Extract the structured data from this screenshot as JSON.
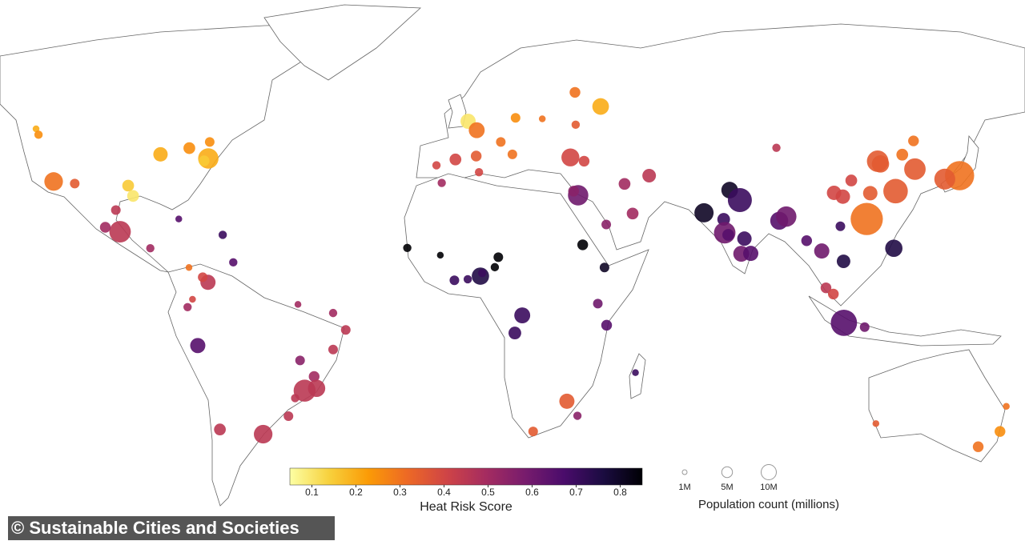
{
  "chart_data": {
    "type": "bubble-map",
    "colorbar": {
      "title": "Heat Risk Score",
      "clim": [
        0.05,
        0.85
      ],
      "ticks": [
        0.1,
        0.2,
        0.3,
        0.4,
        0.5,
        0.6,
        0.7,
        0.8
      ],
      "colormap": [
        "#fcffa4",
        "#f7d13d",
        "#fb9b06",
        "#ed6925",
        "#cf4446",
        "#a52c60",
        "#781c6d",
        "#4a0c6b",
        "#1b0c41",
        "#000004"
      ]
    },
    "size_legend": {
      "title": "Population count (millions)",
      "ticks": [
        {
          "value": 1,
          "label": "1M"
        },
        {
          "value": 5,
          "label": "5M"
        },
        {
          "value": 10,
          "label": "10M"
        }
      ]
    },
    "lon": [
      -118,
      -112,
      -123,
      -122.3,
      -87.6,
      -79.4,
      -73.6,
      -74,
      -75.2,
      -96.8,
      -95.4,
      -100.3,
      -99.1,
      -103.3,
      -90.5,
      -82.4,
      -69.9,
      -79.5,
      -66.9,
      -74.1,
      -75.6,
      -79.9,
      -78.5,
      -77,
      -48.5,
      -38.5,
      -34.9,
      -38.5,
      -47.9,
      -43.9,
      -46.6,
      -43.2,
      -49.3,
      -51.2,
      -70.7,
      -58.4,
      -0.1,
      2.35,
      -3.7,
      2.2,
      -9.1,
      12.5,
      9.2,
      13.4,
      21,
      30.5,
      37.6,
      30.3,
      29,
      32.9,
      31.2,
      29.9,
      3,
      -7.6,
      51.4,
      44.4,
      46.7,
      39.2,
      -17.4,
      -8,
      -4,
      -0.2,
      3.4,
      3.9,
      8.5,
      7.5,
      32.5,
      38.7,
      15.3,
      13.2,
      36.8,
      39.3,
      47.5,
      28,
      18.4,
      31,
      67,
      74.3,
      77.2,
      72.6,
      72.9,
      73.9,
      78.5,
      77.6,
      80.3,
      88.4,
      90.4,
      96.2,
      100.5,
      106.7,
      105.8,
      121,
      101.7,
      103.8,
      106.8,
      112.7,
      116.4,
      117.2,
      121.5,
      113.3,
      114.3,
      104,
      106.5,
      108.9,
      127,
      139.7,
      135.5,
      126.6,
      123.4,
      87.6,
      151.2,
      145,
      153,
      115.9
    ],
    "lat": [
      34,
      33.4,
      49.3,
      47.6,
      41.9,
      43.7,
      45.5,
      40.7,
      40,
      32.8,
      29.8,
      25.7,
      19.4,
      20.7,
      14.6,
      23.1,
      18.5,
      9,
      10.5,
      4.7,
      6.2,
      -2.2,
      -0.2,
      -12,
      -1.5,
      -3.7,
      -8,
      -13,
      -15.8,
      -19.9,
      -23.5,
      -22.9,
      -25.4,
      -30,
      -33.4,
      -34.6,
      51.5,
      48.9,
      40.4,
      41.4,
      38.7,
      41.9,
      45.5,
      52.5,
      52.2,
      50.5,
      55.8,
      59.9,
      41,
      39.9,
      30,
      31.2,
      36.7,
      33.6,
      35.7,
      33.3,
      24.7,
      21.5,
      14.7,
      12.6,
      5.3,
      5.6,
      6.5,
      7.4,
      12,
      9.1,
      15.6,
      9,
      -4.3,
      -8.8,
      -1.3,
      -6.8,
      -18.9,
      -26.2,
      -33.9,
      -29.9,
      24.9,
      31.5,
      28.6,
      23,
      19.1,
      18.5,
      17.4,
      13,
      13.1,
      22.6,
      23.8,
      16.8,
      13.8,
      10.8,
      21,
      14.6,
      3.1,
      1.3,
      -6.2,
      -7.3,
      39.9,
      39.1,
      31.2,
      23.1,
      30.6,
      30.7,
      29.6,
      34.3,
      37.6,
      35.7,
      34.7,
      45.8,
      41.8,
      43.8,
      -33.9,
      -37.8,
      -27.5,
      -31.9
    ],
    "risk": [
      0.3,
      0.35,
      0.2,
      0.25,
      0.2,
      0.25,
      0.25,
      0.2,
      0.15,
      0.15,
      0.1,
      0.45,
      0.45,
      0.5,
      0.5,
      0.65,
      0.7,
      0.3,
      0.65,
      0.45,
      0.4,
      0.5,
      0.4,
      0.65,
      0.5,
      0.5,
      0.45,
      0.45,
      0.55,
      0.5,
      0.45,
      0.45,
      0.45,
      0.45,
      0.45,
      0.45,
      0.1,
      0.3,
      0.4,
      0.35,
      0.4,
      0.3,
      0.3,
      0.25,
      0.3,
      0.35,
      0.2,
      0.3,
      0.4,
      0.4,
      0.6,
      0.55,
      0.4,
      0.5,
      0.45,
      0.5,
      0.5,
      0.55,
      0.85,
      0.85,
      0.7,
      0.7,
      0.75,
      0.7,
      0.85,
      0.85,
      0.85,
      0.8,
      0.7,
      0.7,
      0.6,
      0.65,
      0.7,
      0.35,
      0.35,
      0.55,
      0.8,
      0.8,
      0.7,
      0.7,
      0.6,
      0.65,
      0.7,
      0.6,
      0.65,
      0.65,
      0.6,
      0.65,
      0.6,
      0.75,
      0.7,
      0.75,
      0.45,
      0.4,
      0.65,
      0.6,
      0.35,
      0.35,
      0.35,
      0.3,
      0.35,
      0.4,
      0.4,
      0.4,
      0.35,
      0.3,
      0.35,
      0.3,
      0.3,
      0.45,
      0.25,
      0.3,
      0.3,
      0.35
    ],
    "population": [
      15,
      4,
      2,
      3,
      9,
      6,
      4,
      18,
      5,
      6,
      6,
      4,
      20,
      5,
      3,
      2,
      3,
      2,
      3,
      10,
      4,
      3,
      2,
      10,
      2,
      3,
      4,
      4,
      4,
      5,
      21,
      13,
      3,
      4,
      6,
      15,
      10,
      11,
      6,
      5,
      3,
      4,
      4,
      4,
      2,
      3,
      12,
      5,
      14,
      5,
      18,
      5,
      3,
      3,
      8,
      6,
      6,
      4,
      3,
      2,
      4,
      3,
      13,
      3,
      4,
      3,
      5,
      4,
      11,
      7,
      4,
      5,
      2,
      10,
      4,
      3,
      16,
      12,
      25,
      7,
      20,
      6,
      9,
      11,
      10,
      14,
      18,
      5,
      10,
      8,
      4,
      13,
      5,
      5,
      30,
      4,
      20,
      13,
      26,
      45,
      9,
      9,
      9,
      6,
      20,
      37,
      19,
      5,
      6,
      3,
      5,
      5,
      2,
      2
    ]
  },
  "credit": "© Sustainable Cities and Societies"
}
